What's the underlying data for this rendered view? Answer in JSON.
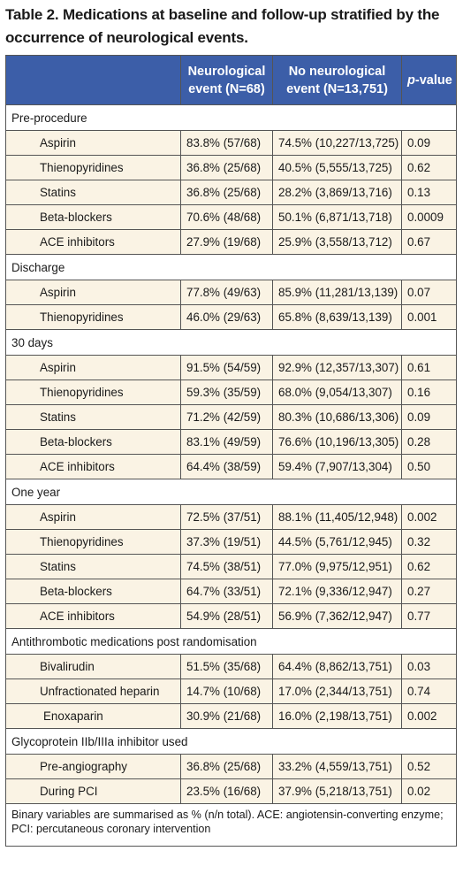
{
  "title_line1": "Table 2. Medications at baseline and follow-up stratified by the",
  "title_line2": "occurrence of neurological events.",
  "header": {
    "col1_line1": "Neurological",
    "col1_line2": "event (N=68)",
    "col2_line1": "No neurological",
    "col2_line2": "event (N=13,751)",
    "col3_italic": "p",
    "col3_rest": "-value"
  },
  "sections": [
    {
      "label": "Pre-procedure",
      "rows": [
        {
          "name": "Aspirin",
          "neuro": "83.8% (57/68)",
          "no_neuro": "74.5% (10,227/13,725)",
          "p": "0.09"
        },
        {
          "name": "Thienopyridines",
          "neuro": "36.8% (25/68)",
          "no_neuro": "40.5% (5,555/13,725)",
          "p": "0.62"
        },
        {
          "name": "Statins",
          "neuro": "36.8% (25/68)",
          "no_neuro": "28.2% (3,869/13,716)",
          "p": "0.13"
        },
        {
          "name": "Beta-blockers",
          "neuro": "70.6% (48/68)",
          "no_neuro": "50.1% (6,871/13,718)",
          "p": "0.0009"
        },
        {
          "name": "ACE inhibitors",
          "neuro": "27.9% (19/68)",
          "no_neuro": "25.9% (3,558/13,712)",
          "p": "0.67"
        }
      ]
    },
    {
      "label": "Discharge",
      "rows": [
        {
          "name": "Aspirin",
          "neuro": "77.8% (49/63)",
          "no_neuro": "85.9% (11,281/13,139)",
          "p": "0.07"
        },
        {
          "name": "Thienopyridines",
          "neuro": "46.0% (29/63)",
          "no_neuro": "65.8% (8,639/13,139)",
          "p": "0.001"
        }
      ]
    },
    {
      "label": "30 days",
      "rows": [
        {
          "name": "Aspirin",
          "neuro": "91.5% (54/59)",
          "no_neuro": "92.9% (12,357/13,307)",
          "p": "0.61"
        },
        {
          "name": "Thienopyridines",
          "neuro": "59.3% (35/59)",
          "no_neuro": "68.0% (9,054/13,307)",
          "p": "0.16"
        },
        {
          "name": "Statins",
          "neuro": "71.2% (42/59)",
          "no_neuro": "80.3% (10,686/13,306)",
          "p": "0.09"
        },
        {
          "name": "Beta-blockers",
          "neuro": "83.1% (49/59)",
          "no_neuro": "76.6% (10,196/13,305)",
          "p": "0.28"
        },
        {
          "name": "ACE inhibitors",
          "neuro": "64.4% (38/59)",
          "no_neuro": "59.4% (7,907/13,304)",
          "p": "0.50"
        }
      ]
    },
    {
      "label": "One year",
      "rows": [
        {
          "name": "Aspirin",
          "neuro": "72.5% (37/51)",
          "no_neuro": "88.1% (11,405/12,948)",
          "p": "0.002"
        },
        {
          "name": "Thienopyridines",
          "neuro": "37.3% (19/51)",
          "no_neuro": "44.5% (5,761/12,945)",
          "p": "0.32"
        },
        {
          "name": "Statins",
          "neuro": "74.5% (38/51)",
          "no_neuro": "77.0% (9,975/12,951)",
          "p": "0.62"
        },
        {
          "name": "Beta-blockers",
          "neuro": "64.7% (33/51)",
          "no_neuro": "72.1% (9,336/12,947)",
          "p": "0.27"
        },
        {
          "name": "ACE inhibitors",
          "neuro": "54.9% (28/51)",
          "no_neuro": "56.9% (7,362/12,947)",
          "p": "0.77"
        }
      ]
    },
    {
      "label": "Antithrombotic medications post randomisation",
      "rows": [
        {
          "name": "Bivalirudin",
          "neuro": "51.5% (35/68)",
          "no_neuro": "64.4% (8,862/13,751)",
          "p": "0.03"
        },
        {
          "name": "Unfractionated heparin",
          "neuro": "14.7% (10/68)",
          "no_neuro": "17.0% (2,344/13,751)",
          "p": "0.74"
        },
        {
          "name": "Enoxaparin",
          "neuro": "30.9% (21/68)",
          "no_neuro": "16.0% (2,198/13,751)",
          "p": "0.002"
        }
      ]
    },
    {
      "label": "Glycoprotein IIb/IIIa inhibitor used",
      "rows": [
        {
          "name": "Pre-angiography",
          "neuro": "36.8% (25/68)",
          "no_neuro": "33.2% (4,559/13,751)",
          "p": "0.52"
        },
        {
          "name": "During PCI",
          "neuro": "23.5% (16/68)",
          "no_neuro": "37.9% (5,218/13,751)",
          "p": "0.02"
        }
      ]
    }
  ],
  "footnote": "Binary variables are summarised as % (n/n total). ACE: angiotensin-converting enzyme; PCI: percutaneous coronary intervention",
  "colors": {
    "header_bg": "#3c5ea8",
    "row_bg": "#faf3e4",
    "border": "#555555"
  }
}
